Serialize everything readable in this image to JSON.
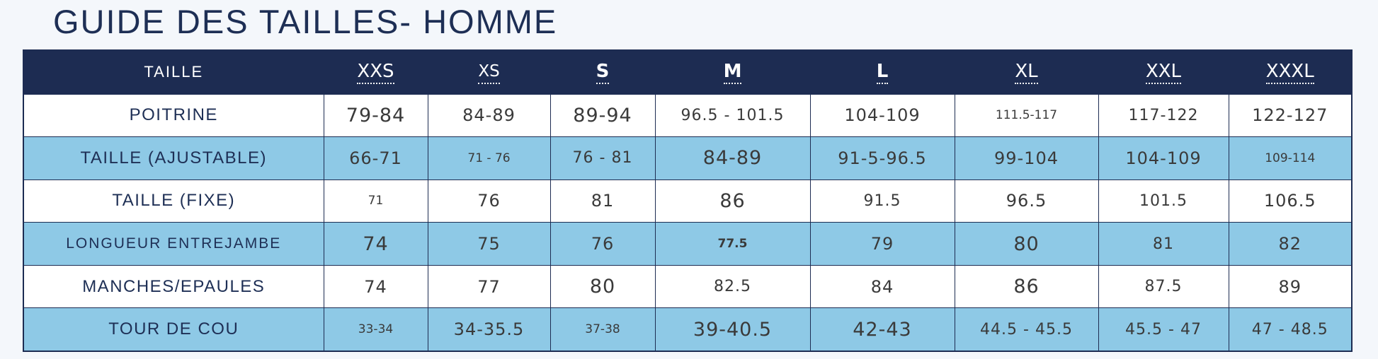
{
  "title": "GUIDE DES TAILLES- HOMME",
  "table": {
    "corner_label": "TAILLE",
    "sizes": [
      "XXS",
      "XS",
      "S",
      "M",
      "L",
      "XL",
      "XXL",
      "XXXL"
    ],
    "rows": [
      {
        "label": "POITRINE",
        "values": [
          "79-84",
          "84-89",
          "89-94",
          "96.5 - 101.5",
          "104-109",
          "111.5-117",
          "117-122",
          "122-127"
        ]
      },
      {
        "label": "TAILLE (AJUSTABLE)",
        "values": [
          "66-71",
          "71 - 76",
          "76 - 81",
          "84-89",
          "91-5-96.5",
          "99-104",
          "104-109",
          "109-114"
        ]
      },
      {
        "label": "TAILLE (FIXE)",
        "values": [
          "71",
          "76",
          "81",
          "86",
          "91.5",
          "96.5",
          "101.5",
          "106.5"
        ]
      },
      {
        "label": "LONGUEUR ENTREJAMBE",
        "values": [
          "74",
          "75",
          "76",
          "77.5",
          "79",
          "80",
          "81",
          "82"
        ]
      },
      {
        "label": "MANCHES/EPAULES",
        "values": [
          "74",
          "77",
          "80",
          "82.5",
          "84",
          "86",
          "87.5",
          "89"
        ]
      },
      {
        "label": "TOUR DE COU",
        "values": [
          "33-34",
          "34-35.5",
          "37-38",
          "39-40.5",
          "42-43",
          "44.5 - 45.5",
          "45.5 - 47",
          "47 - 48.5"
        ]
      }
    ]
  },
  "colors": {
    "header_bg": "#1d2c52",
    "row_blue": "#8ec9e6",
    "row_white": "#ffffff",
    "title": "#1e2f55"
  }
}
